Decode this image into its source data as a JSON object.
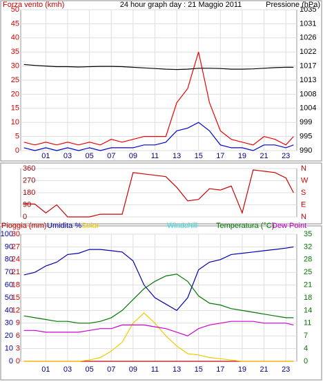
{
  "chart_data": [
    {
      "type": "line",
      "title": "24 hour graph day : 21 Maggio 2011",
      "y_label": "Forza vento (kmh)",
      "y2_label": "Pressione (hPa)",
      "x": [
        -1,
        0,
        1,
        2,
        3,
        4,
        5,
        6,
        7,
        8,
        9,
        10,
        11,
        12,
        13,
        14,
        15,
        16,
        17,
        18,
        19,
        20,
        21,
        22,
        23,
        23.7
      ],
      "xlim": [
        -1.3,
        24
      ],
      "xticks": [
        {
          "value": 1,
          "label": "01"
        },
        {
          "value": 3,
          "label": "03"
        },
        {
          "value": 5,
          "label": "05"
        },
        {
          "value": 7,
          "label": "07"
        },
        {
          "value": 9,
          "label": "09"
        },
        {
          "value": 11,
          "label": "11"
        },
        {
          "value": 13,
          "label": "13"
        },
        {
          "value": 15,
          "label": "15"
        },
        {
          "value": 17,
          "label": "17"
        },
        {
          "value": 19,
          "label": "19"
        },
        {
          "value": 21,
          "label": "21"
        },
        {
          "value": 23,
          "label": "23"
        }
      ],
      "ylim": [
        0,
        50
      ],
      "yticks": [
        0,
        5,
        10,
        15,
        20,
        25,
        30,
        35,
        40,
        45,
        50
      ],
      "y_color": "#cc0000",
      "y2lim": [
        990,
        1035
      ],
      "y2ticks": [
        990,
        {
          "value": 994.5,
          "label": "995"
        },
        999,
        {
          "value": 1003.5,
          "label": "1004"
        },
        1008,
        {
          "value": 1012.5,
          "label": "1013"
        },
        1017,
        {
          "value": 1021.5,
          "label": "1022"
        },
        1026,
        {
          "value": 1030.5,
          "label": "1031"
        },
        1035
      ],
      "y2_color": "#000000",
      "grid": true,
      "series": [
        {
          "color": "#ee0000",
          "axis": "y",
          "values": [
            3,
            2,
            3,
            2,
            3,
            2,
            3,
            2,
            4,
            3,
            4,
            5,
            5,
            5,
            17,
            22,
            35,
            17,
            7,
            4,
            3,
            2,
            5,
            4,
            2,
            5
          ]
        },
        {
          "color": "#0000cc",
          "axis": "y",
          "values": [
            1,
            0,
            1,
            0,
            1,
            0,
            1,
            0,
            1,
            1,
            1,
            2,
            2,
            3,
            7,
            8,
            10,
            7,
            2,
            1,
            1,
            0,
            2,
            2,
            1,
            2
          ]
        },
        {
          "color": "#000000",
          "axis": "y2",
          "values": [
            1017.5,
            1017.2,
            1017,
            1016.8,
            1016.8,
            1016.7,
            1016.8,
            1016.9,
            1016.9,
            1016.8,
            1016.6,
            1016.4,
            1016.2,
            1016,
            1015.9,
            1016,
            1016.3,
            1016.3,
            1016.2,
            1016,
            1016,
            1016.1,
            1016.3,
            1016.5,
            1016.6,
            1016.6
          ]
        }
      ]
    },
    {
      "type": "line",
      "x": [
        -1,
        0,
        1,
        2,
        3,
        4,
        5,
        6,
        7,
        8,
        9,
        10,
        11,
        12,
        13,
        14,
        15,
        16,
        17,
        18,
        19,
        20,
        21,
        22,
        23,
        23.7
      ],
      "xlim": [
        -1.3,
        24
      ],
      "ylim": [
        0,
        360
      ],
      "yticks": [
        0,
        90,
        180,
        270,
        360
      ],
      "y_color": "#990000",
      "y2lim": [
        0,
        360
      ],
      "y2ticks": [
        {
          "value": 360,
          "label": "N"
        },
        {
          "value": 270,
          "label": "W"
        },
        {
          "value": 180,
          "label": "S"
        },
        {
          "value": 90,
          "label": "E"
        },
        {
          "value": 0,
          "label": "N"
        }
      ],
      "y2_color": "#cc0000",
      "grid": true,
      "series": [
        {
          "color": "#cc0000",
          "axis": "y",
          "values": [
            100,
            95,
            30,
            90,
            0,
            0,
            0,
            20,
            20,
            20,
            330,
            320,
            310,
            300,
            220,
            120,
            130,
            210,
            200,
            230,
            30,
            350,
            340,
            330,
            290,
            180
          ]
        }
      ]
    },
    {
      "type": "line",
      "windchill_label": "Windchill",
      "x": [
        -1,
        0,
        1,
        2,
        3,
        4,
        5,
        6,
        7,
        8,
        9,
        10,
        11,
        12,
        13,
        14,
        15,
        16,
        17,
        18,
        19,
        20,
        21,
        22,
        23,
        23.7
      ],
      "xlim": [
        -1.3,
        24
      ],
      "xticks": [
        {
          "value": 1,
          "label": "01"
        },
        {
          "value": 3,
          "label": "03"
        },
        {
          "value": 5,
          "label": "05"
        },
        {
          "value": 7,
          "label": "07"
        },
        {
          "value": 9,
          "label": "09"
        },
        {
          "value": 11,
          "label": "11"
        },
        {
          "value": 13,
          "label": "13"
        },
        {
          "value": 15,
          "label": "15"
        },
        {
          "value": 17,
          "label": "17"
        },
        {
          "value": 19,
          "label": "19"
        },
        {
          "value": 21,
          "label": "21"
        },
        {
          "value": 23,
          "label": "23"
        }
      ],
      "ylim": [
        0,
        100
      ],
      "yticks": [
        0,
        10,
        20,
        30,
        40,
        50,
        60,
        70,
        80,
        90,
        100
      ],
      "y_color": "#0000aa",
      "y3lim": [
        0,
        30
      ],
      "y3ticks": [
        0,
        3,
        6,
        9,
        12,
        15,
        18,
        21,
        24,
        27,
        30
      ],
      "y3_color": "#cc0000",
      "y2lim": [
        0,
        35
      ],
      "y2ticks": [
        0,
        {
          "value": 3.5,
          "label": "4"
        },
        7,
        {
          "value": 10.5,
          "label": "11"
        },
        14,
        {
          "value": 17.5,
          "label": "18"
        },
        21,
        {
          "value": 24.5,
          "label": "25"
        },
        28,
        {
          "value": 31.5,
          "label": "32"
        },
        35
      ],
      "y2_color": "#007700",
      "grid": true,
      "series": [
        {
          "name": "Pioggia (mm)",
          "color": "#cc0000",
          "axis": "y3",
          "values": [
            0,
            0,
            0,
            0,
            0,
            0,
            0,
            0,
            0,
            0,
            0,
            0,
            0,
            0,
            0,
            0,
            0,
            0,
            0,
            0,
            0,
            0,
            0,
            0,
            0,
            0
          ]
        },
        {
          "name": "Umidita %",
          "color": "#0000aa",
          "axis": "y",
          "values": [
            68,
            70,
            75,
            78,
            84,
            85,
            88,
            88,
            87,
            86,
            79,
            60,
            50,
            45,
            40,
            50,
            72,
            78,
            80,
            84,
            85,
            86,
            87,
            88,
            89,
            90
          ]
        },
        {
          "name": "Solar",
          "color": "#eecc00",
          "axis": "y",
          "values": [
            0,
            0,
            0,
            0,
            0,
            0,
            1,
            3,
            8,
            15,
            30,
            38,
            30,
            20,
            12,
            6,
            5,
            3,
            2,
            1,
            0,
            0,
            0,
            0,
            0,
            0
          ]
        },
        {
          "name": "Temperatura (°C)",
          "color": "#007700",
          "axis": "y2",
          "values": [
            12.5,
            12,
            11.5,
            11,
            11,
            10.5,
            10.5,
            11,
            12,
            14,
            17,
            20,
            22,
            23.5,
            24,
            22,
            18,
            16,
            15.5,
            14.5,
            14,
            13.5,
            13,
            12.5,
            12,
            12
          ]
        },
        {
          "name": "Dew Point",
          "color": "#cc00cc",
          "axis": "y2",
          "values": [
            8.5,
            8.5,
            8,
            8,
            8,
            8,
            8.5,
            9,
            9,
            10,
            10,
            10,
            9.5,
            9,
            8,
            7,
            9,
            10,
            10.5,
            11,
            11,
            11,
            10.5,
            10.5,
            10.5,
            10
          ]
        }
      ]
    }
  ]
}
